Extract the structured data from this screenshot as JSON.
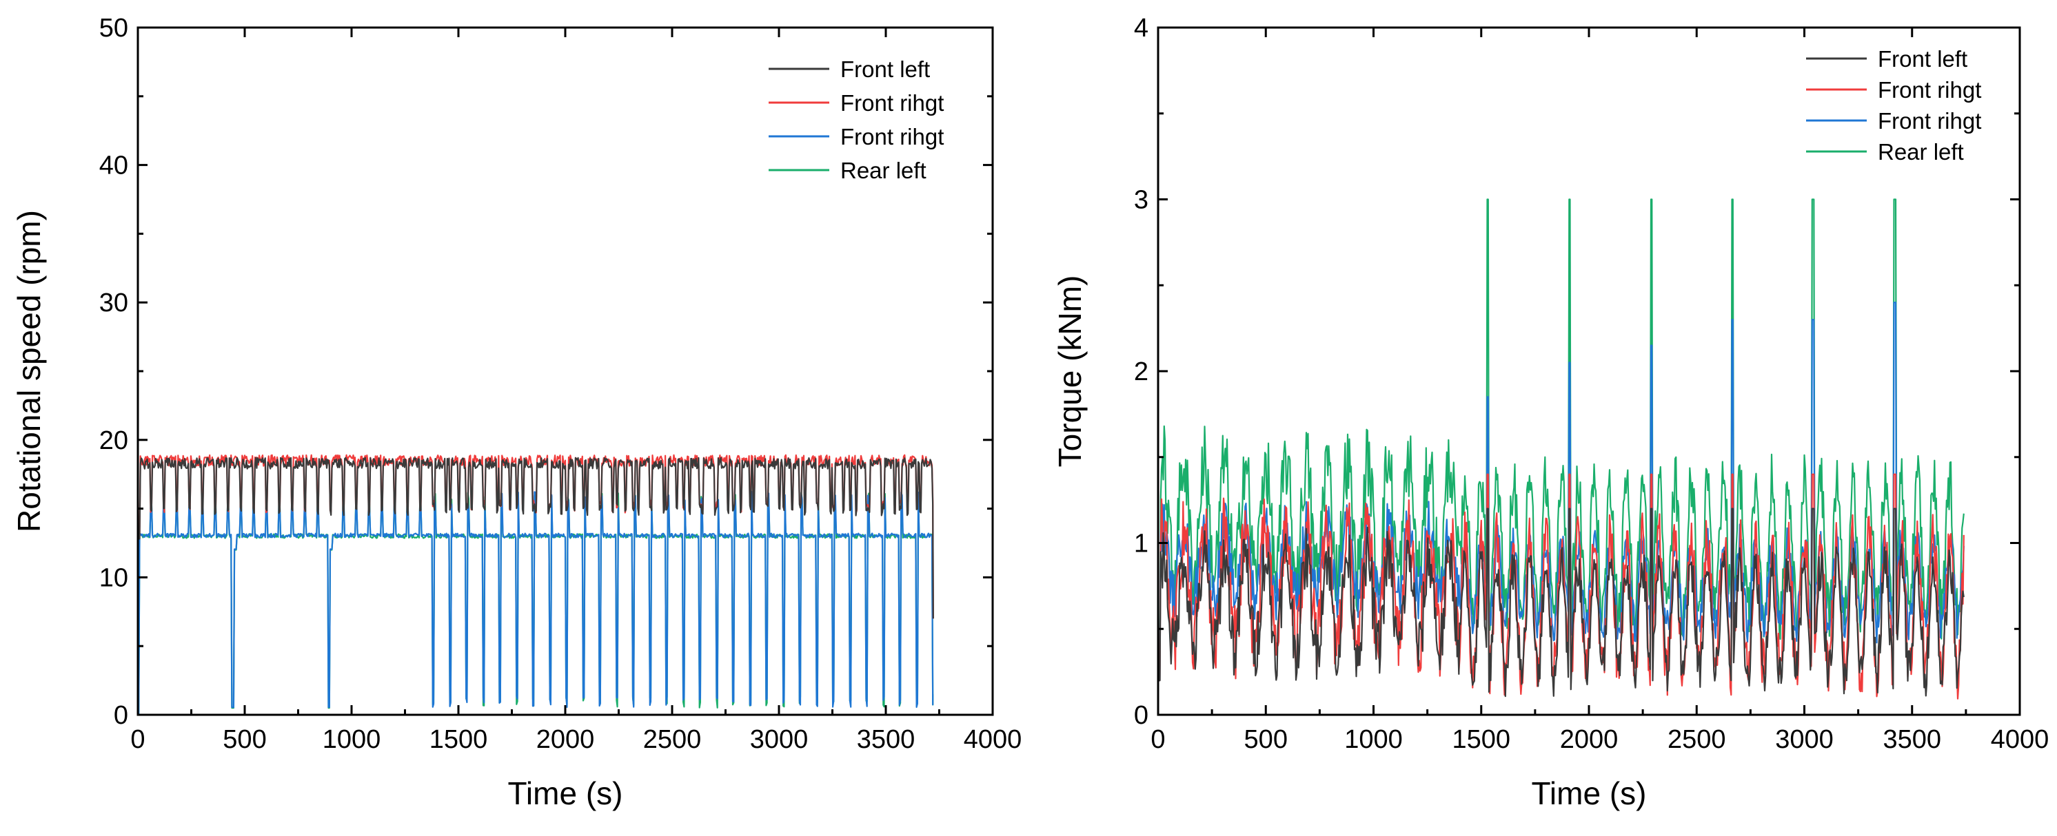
{
  "chart_data": [
    {
      "type": "line",
      "title": "",
      "xlabel": "Time (s)",
      "ylabel": "Rotational speed (rpm)",
      "xlim": [
        0,
        4000
      ],
      "ylim": [
        0,
        50
      ],
      "xticks": [
        0,
        500,
        1000,
        1500,
        2000,
        2500,
        3000,
        3500,
        4000
      ],
      "yticks": [
        0,
        10,
        20,
        30,
        40,
        50
      ],
      "grid": false,
      "legend_position": "top-right",
      "series": [
        {
          "name": "Front left",
          "color": "#3a3a3a",
          "kind": "speed_gray"
        },
        {
          "name": "Front rihgt",
          "color": "#f03c3c",
          "kind": "speed_red"
        },
        {
          "name": "Front rihgt",
          "color": "#1f77d4",
          "kind": "speed_blue"
        },
        {
          "name": "Rear left",
          "color": "#1aae6b",
          "kind": "speed_green"
        }
      ],
      "levels": {
        "high_speed": 18.5,
        "mid_speed": 13,
        "dip_speed": 15,
        "drop_speed": 0.5,
        "end_time": 3720
      },
      "events": {
        "zero_drops_early": [
          450,
          900
        ],
        "segment_split_time": 1350,
        "dense_cycle_period": 78,
        "dense_cycle_start": 1380
      }
    },
    {
      "type": "line",
      "title": "",
      "xlabel": "Time (s)",
      "ylabel": "Torque (kNm)",
      "xlim": [
        0,
        4000
      ],
      "ylim": [
        0,
        4
      ],
      "xticks": [
        0,
        500,
        1000,
        1500,
        2000,
        2500,
        3000,
        3500,
        4000
      ],
      "yticks": [
        0,
        1,
        2,
        3,
        4
      ],
      "grid": false,
      "legend_position": "top-right",
      "series": [
        {
          "name": "Front left",
          "color": "#3a3a3a",
          "kind": "torque_gray"
        },
        {
          "name": "Front rihgt",
          "color": "#f03c3c",
          "kind": "torque_red"
        },
        {
          "name": "Front rihgt",
          "color": "#1f77d4",
          "kind": "torque_blue"
        },
        {
          "name": "Rear left",
          "color": "#1aae6b",
          "kind": "torque_green"
        }
      ],
      "peaks": {
        "green_peak_times": [
          1530,
          1910,
          2290,
          2665,
          3040,
          3420
        ],
        "green_peak_value": 3.0,
        "blue_peak_values": [
          1.85,
          2.05,
          2.15,
          2.3,
          2.3,
          2.4
        ],
        "end_time": 3740
      }
    }
  ]
}
